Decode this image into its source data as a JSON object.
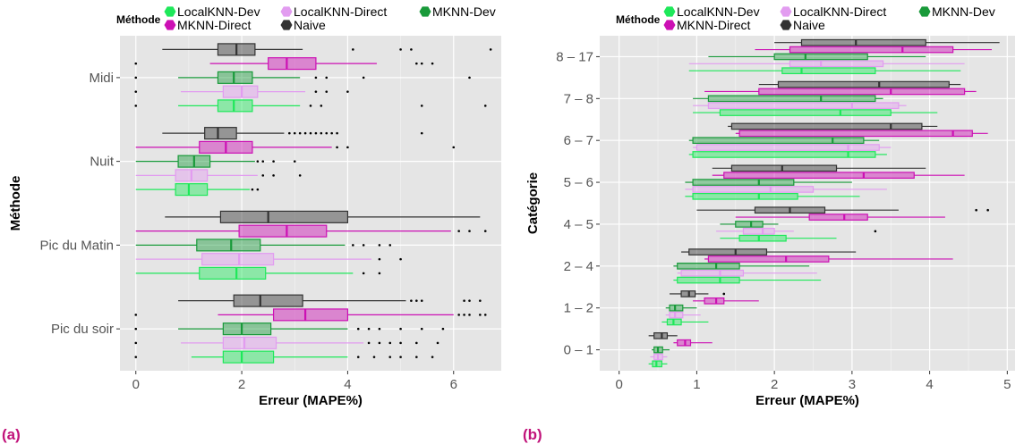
{
  "panels": {
    "a": {
      "label": "(a)"
    },
    "b": {
      "label": "(b)"
    }
  },
  "colors": {
    "LocalKNN-Dev": "#1ee85a",
    "LocalKNN-Direct": "#e29cf0",
    "MKNN-Dev": "#199a3a",
    "MKNN-Direct": "#cc10b4",
    "Naive": "#333333",
    "panel_bg": "#e5e5e5",
    "grid": "#ffffff",
    "panel_label": "#c1137a"
  },
  "chart_data": [
    {
      "type": "boxplot",
      "orientation": "horizontal",
      "xlabel": "Erreur (MAPE%)",
      "ylabel": "Méthode",
      "xlim": [
        -0.3,
        6.9
      ],
      "xticks": [
        0,
        2,
        4,
        6
      ],
      "grid": true,
      "legend": {
        "title": "Méthode",
        "position": "top",
        "entries": [
          "LocalKNN-Dev",
          "LocalKNN-Direct",
          "MKNN-Dev",
          "MKNN-Direct",
          "Naive"
        ]
      },
      "categories": [
        "Midi",
        "Nuit",
        "Pic du Matin",
        "Pic du soir"
      ],
      "series": [
        {
          "name": "Naive",
          "boxes": [
            {
              "whislo": 0.5,
              "q1": 1.55,
              "med": 1.9,
              "q3": 2.25,
              "whishi": 3.15,
              "fliers": [
                4.1,
                5.0,
                5.2,
                6.7
              ]
            },
            {
              "whislo": 0.5,
              "q1": 1.3,
              "med": 1.55,
              "q3": 1.9,
              "whishi": 2.8,
              "fliers": [
                2.9,
                3.0,
                3.1,
                3.2,
                3.3,
                3.4,
                3.5,
                3.6,
                3.7,
                3.8,
                5.4
              ]
            },
            {
              "whislo": 0.55,
              "q1": 1.6,
              "med": 2.5,
              "q3": 4.0,
              "whishi": 6.5,
              "fliers": []
            },
            {
              "whislo": 0.8,
              "q1": 1.85,
              "med": 2.35,
              "q3": 3.15,
              "whishi": 5.1,
              "fliers": [
                5.2,
                5.3,
                5.4,
                6.2,
                6.3,
                6.5
              ]
            }
          ]
        },
        {
          "name": "MKNN-Direct",
          "boxes": [
            {
              "whislo": 1.4,
              "q1": 2.5,
              "med": 2.85,
              "q3": 3.4,
              "whishi": 4.55,
              "fliers": [
                5.3,
                5.4,
                5.6
              ]
            },
            {
              "whislo": 0.0,
              "q1": 1.2,
              "med": 1.7,
              "q3": 2.2,
              "whishi": 3.7,
              "fliers": [
                3.8,
                4.0,
                6.0
              ]
            },
            {
              "whislo": 0.0,
              "q1": 1.95,
              "med": 2.85,
              "q3": 3.6,
              "whishi": 5.95,
              "fliers": [
                6.1,
                6.3,
                6.6
              ]
            },
            {
              "whislo": 1.55,
              "q1": 2.6,
              "med": 3.2,
              "q3": 4.0,
              "whishi": 6.0,
              "fliers": [
                6.1,
                6.2,
                6.3,
                6.5,
                6.6
              ]
            }
          ]
        },
        {
          "name": "MKNN-Dev",
          "boxes": [
            {
              "whislo": 0.8,
              "q1": 1.55,
              "med": 1.85,
              "q3": 2.2,
              "whishi": 3.1,
              "fliers": [
                3.4,
                3.6,
                4.3,
                6.3
              ]
            },
            {
              "whislo": 0.0,
              "q1": 0.8,
              "med": 1.1,
              "q3": 1.4,
              "whishi": 2.25,
              "fliers": [
                2.3,
                2.4,
                2.6,
                3.0
              ]
            },
            {
              "whislo": 0.0,
              "q1": 1.15,
              "med": 1.8,
              "q3": 2.35,
              "whishi": 3.95,
              "fliers": [
                4.1,
                4.3,
                4.6,
                4.8
              ]
            },
            {
              "whislo": 0.8,
              "q1": 1.65,
              "med": 2.0,
              "q3": 2.55,
              "whishi": 4.0,
              "fliers": [
                4.2,
                4.4,
                4.6,
                5.0,
                5.4,
                5.8
              ]
            }
          ]
        },
        {
          "name": "LocalKNN-Direct",
          "boxes": [
            {
              "whislo": 0.85,
              "q1": 1.65,
              "med": 2.0,
              "q3": 2.3,
              "whishi": 3.2,
              "fliers": [
                3.4,
                3.6,
                4.0
              ]
            },
            {
              "whislo": 0.0,
              "q1": 0.75,
              "med": 1.05,
              "q3": 1.35,
              "whishi": 2.3,
              "fliers": [
                2.4,
                2.6,
                3.1
              ]
            },
            {
              "whislo": 0.0,
              "q1": 1.25,
              "med": 1.95,
              "q3": 2.6,
              "whishi": 4.45,
              "fliers": [
                4.6,
                5.0
              ]
            },
            {
              "whislo": 0.85,
              "q1": 1.65,
              "med": 2.05,
              "q3": 2.65,
              "whishi": 4.3,
              "fliers": [
                4.4,
                4.6,
                4.8,
                5.0,
                5.3,
                5.7
              ]
            }
          ]
        },
        {
          "name": "LocalKNN-Dev",
          "boxes": [
            {
              "whislo": 0.8,
              "q1": 1.55,
              "med": 1.85,
              "q3": 2.2,
              "whishi": 3.1,
              "fliers": [
                3.3,
                3.5,
                5.4,
                6.6
              ]
            },
            {
              "whislo": 0.0,
              "q1": 0.75,
              "med": 1.0,
              "q3": 1.35,
              "whishi": 2.15,
              "fliers": [
                2.2,
                2.3
              ]
            },
            {
              "whislo": 0.0,
              "q1": 1.2,
              "med": 1.9,
              "q3": 2.45,
              "whishi": 4.1,
              "fliers": [
                4.3,
                4.6
              ]
            },
            {
              "whislo": 1.05,
              "q1": 1.65,
              "med": 2.0,
              "q3": 2.6,
              "whishi": 4.0,
              "fliers": [
                4.2,
                4.5,
                4.8,
                5.0,
                5.3,
                5.6
              ]
            }
          ]
        }
      ],
      "extra_fliers": [
        {
          "category": "Midi",
          "x": 0.0,
          "count": 4
        },
        {
          "category": "Pic du soir",
          "x": 0.0,
          "count": 4
        }
      ]
    },
    {
      "type": "boxplot",
      "orientation": "horizontal",
      "xlabel": "Erreur (MAPE%)",
      "ylabel": "Catégorie",
      "xlim": [
        -0.25,
        5.1
      ],
      "xticks": [
        0,
        1,
        2,
        3,
        4,
        5
      ],
      "grid": true,
      "legend": {
        "title": "Méthode",
        "position": "top",
        "entries": [
          "LocalKNN-Dev",
          "LocalKNN-Direct",
          "MKNN-Dev",
          "MKNN-Direct",
          "Naive"
        ]
      },
      "categories": [
        "8 – 17",
        "7 – 8",
        "6 – 7",
        "5 – 6",
        "4 – 5",
        "2 – 4",
        "1 – 2",
        "0 – 1"
      ],
      "series": [
        {
          "name": "Naive",
          "boxes": [
            {
              "whislo": 2.0,
              "q1": 2.35,
              "med": 3.05,
              "q3": 3.95,
              "whishi": 4.9,
              "fliers": []
            },
            {
              "whislo": 1.8,
              "q1": 2.05,
              "med": 3.35,
              "q3": 4.25,
              "whishi": 4.4,
              "fliers": []
            },
            {
              "whislo": 1.4,
              "q1": 1.45,
              "med": 3.5,
              "q3": 3.9,
              "whishi": 4.1,
              "fliers": []
            },
            {
              "whislo": 1.2,
              "q1": 1.45,
              "med": 2.1,
              "q3": 2.8,
              "whishi": 3.95,
              "fliers": []
            },
            {
              "whislo": 1.0,
              "q1": 1.75,
              "med": 2.2,
              "q3": 2.65,
              "whishi": 3.6,
              "fliers": [
                4.6,
                4.75
              ]
            },
            {
              "whislo": 0.8,
              "q1": 0.9,
              "med": 1.5,
              "q3": 1.9,
              "whishi": 3.05,
              "fliers": []
            },
            {
              "whislo": 0.65,
              "q1": 0.8,
              "med": 0.9,
              "q3": 0.98,
              "whishi": 1.15,
              "fliers": [
                1.35
              ]
            },
            {
              "whislo": 0.38,
              "q1": 0.45,
              "med": 0.55,
              "q3": 0.62,
              "whishi": 0.75,
              "fliers": []
            }
          ]
        },
        {
          "name": "MKNN-Direct",
          "boxes": [
            {
              "whislo": 1.75,
              "q1": 2.2,
              "med": 3.65,
              "q3": 4.3,
              "whishi": 4.8,
              "fliers": []
            },
            {
              "whislo": 1.1,
              "q1": 1.8,
              "med": 3.5,
              "q3": 4.45,
              "whishi": 4.6,
              "fliers": []
            },
            {
              "whislo": 1.5,
              "q1": 1.55,
              "med": 4.3,
              "q3": 4.55,
              "whishi": 4.75,
              "fliers": []
            },
            {
              "whislo": 1.2,
              "q1": 1.35,
              "med": 3.15,
              "q3": 3.8,
              "whishi": 4.45,
              "fliers": []
            },
            {
              "whislo": 1.5,
              "q1": 2.45,
              "med": 2.9,
              "q3": 3.2,
              "whishi": 4.2,
              "fliers": []
            },
            {
              "whislo": 1.1,
              "q1": 1.15,
              "med": 2.15,
              "q3": 2.7,
              "whishi": 4.3,
              "fliers": []
            },
            {
              "whislo": 0.95,
              "q1": 1.1,
              "med": 1.25,
              "q3": 1.35,
              "whishi": 1.8,
              "fliers": []
            },
            {
              "whislo": 0.7,
              "q1": 0.75,
              "med": 0.85,
              "q3": 0.92,
              "whishi": 1.2,
              "fliers": []
            }
          ]
        },
        {
          "name": "MKNN-Dev",
          "boxes": [
            {
              "whislo": 1.15,
              "q1": 2.0,
              "med": 2.4,
              "q3": 3.2,
              "whishi": 3.95,
              "fliers": []
            },
            {
              "whislo": 0.95,
              "q1": 1.15,
              "med": 2.6,
              "q3": 3.3,
              "whishi": 3.4,
              "fliers": []
            },
            {
              "whislo": 0.9,
              "q1": 0.95,
              "med": 2.75,
              "q3": 3.15,
              "whishi": 3.35,
              "fliers": []
            },
            {
              "whislo": 0.85,
              "q1": 0.95,
              "med": 1.8,
              "q3": 2.25,
              "whishi": 3.0,
              "fliers": []
            },
            {
              "whislo": 1.3,
              "q1": 1.5,
              "med": 1.7,
              "q3": 1.85,
              "whishi": 2.05,
              "fliers": []
            },
            {
              "whislo": 0.7,
              "q1": 0.75,
              "med": 1.25,
              "q3": 1.55,
              "whishi": 2.45,
              "fliers": []
            },
            {
              "whislo": 0.6,
              "q1": 0.65,
              "med": 0.72,
              "q3": 0.82,
              "whishi": 1.0,
              "fliers": []
            },
            {
              "whislo": 0.42,
              "q1": 0.45,
              "med": 0.5,
              "q3": 0.56,
              "whishi": 0.65,
              "fliers": []
            }
          ]
        },
        {
          "name": "LocalKNN-Direct",
          "boxes": [
            {
              "whislo": 0.9,
              "q1": 2.2,
              "med": 2.6,
              "q3": 3.4,
              "whishi": 4.45,
              "fliers": []
            },
            {
              "whislo": 0.95,
              "q1": 1.15,
              "med": 3.0,
              "q3": 3.6,
              "whishi": 3.7,
              "fliers": []
            },
            {
              "whislo": 0.95,
              "q1": 1.0,
              "med": 2.95,
              "q3": 3.35,
              "whishi": 3.5,
              "fliers": []
            },
            {
              "whislo": 0.85,
              "q1": 0.95,
              "med": 1.95,
              "q3": 2.5,
              "whishi": 3.45,
              "fliers": []
            },
            {
              "whislo": 1.25,
              "q1": 1.6,
              "med": 1.85,
              "q3": 2.0,
              "whishi": 2.25,
              "fliers": [
                3.3
              ]
            },
            {
              "whislo": 0.75,
              "q1": 0.8,
              "med": 1.3,
              "q3": 1.6,
              "whishi": 2.55,
              "fliers": []
            },
            {
              "whislo": 0.6,
              "q1": 0.65,
              "med": 0.72,
              "q3": 0.82,
              "whishi": 1.05,
              "fliers": []
            },
            {
              "whislo": 0.4,
              "q1": 0.45,
              "med": 0.5,
              "q3": 0.56,
              "whishi": 0.62,
              "fliers": []
            }
          ]
        },
        {
          "name": "LocalKNN-Dev",
          "boxes": [
            {
              "whislo": 0.9,
              "q1": 2.1,
              "med": 2.35,
              "q3": 3.3,
              "whishi": 4.4,
              "fliers": []
            },
            {
              "whislo": 0.95,
              "q1": 1.3,
              "med": 2.85,
              "q3": 3.5,
              "whishi": 4.1,
              "fliers": []
            },
            {
              "whislo": 0.9,
              "q1": 0.95,
              "med": 2.95,
              "q3": 3.3,
              "whishi": 3.45,
              "fliers": []
            },
            {
              "whislo": 0.85,
              "q1": 0.95,
              "med": 1.8,
              "q3": 2.3,
              "whishi": 3.1,
              "fliers": []
            },
            {
              "whislo": 1.3,
              "q1": 1.55,
              "med": 1.8,
              "q3": 2.15,
              "whishi": 2.8,
              "fliers": []
            },
            {
              "whislo": 0.7,
              "q1": 0.75,
              "med": 1.3,
              "q3": 1.55,
              "whishi": 2.6,
              "fliers": []
            },
            {
              "whislo": 0.55,
              "q1": 0.62,
              "med": 0.7,
              "q3": 0.8,
              "whishi": 1.15,
              "fliers": []
            },
            {
              "whislo": 0.38,
              "q1": 0.43,
              "med": 0.48,
              "q3": 0.55,
              "whishi": 0.62,
              "fliers": []
            }
          ]
        }
      ],
      "extra_fliers": []
    }
  ]
}
